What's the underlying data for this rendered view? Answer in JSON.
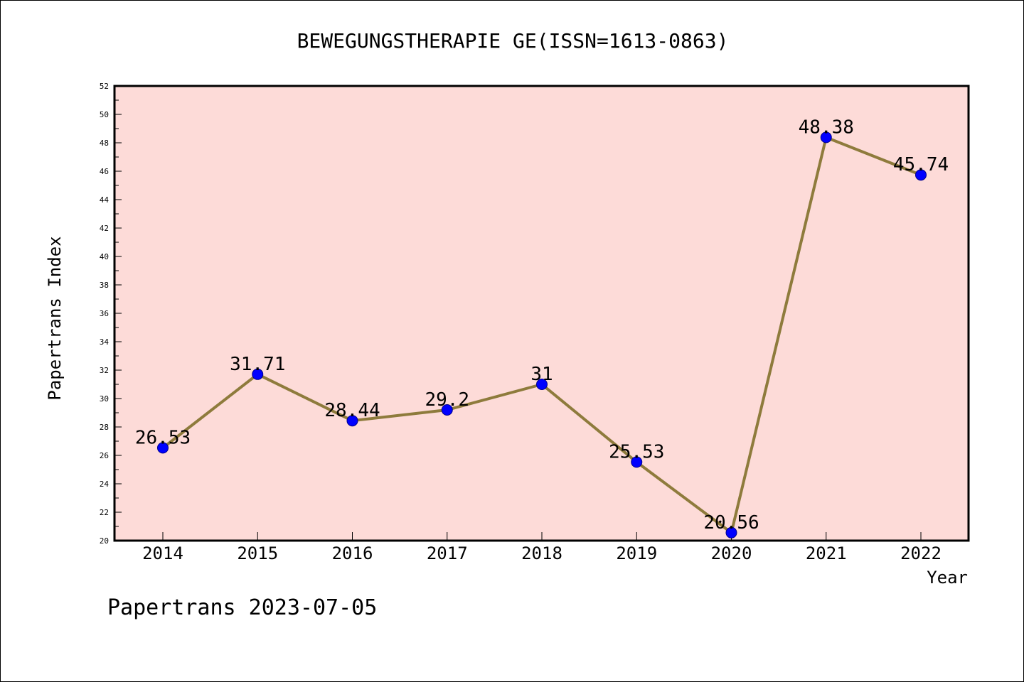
{
  "chart_data": {
    "type": "line",
    "title": "BEWEGUNGSTHERAPIE GE(ISSN=1613-0863)",
    "xlabel": "Year",
    "ylabel": "Papertrans Index",
    "footer": "Papertrans 2023-07-05",
    "categories": [
      "2014",
      "2015",
      "2016",
      "2017",
      "2018",
      "2019",
      "2020",
      "2021",
      "2022"
    ],
    "series": [
      {
        "values": [
          26.53,
          31.71,
          28.44,
          29.2,
          31,
          25.53,
          20.56,
          48.38,
          45.74
        ],
        "labels": [
          "26.53",
          "31.71",
          "28.44",
          "29.2",
          "31",
          "25.53",
          "20.56",
          "48.38",
          "45.74"
        ]
      }
    ],
    "ylim": [
      20,
      52
    ],
    "yticks": [
      "20",
      "22",
      "24",
      "26",
      "28",
      "30",
      "32",
      "34",
      "36",
      "38",
      "40",
      "42",
      "44",
      "46",
      "48",
      "50",
      "52"
    ],
    "grid": false,
    "legend": "none",
    "colors": {
      "plot_background": "#fddbd8",
      "line": "#8e7b3c",
      "marker": "#0000ff",
      "axis": "#000000"
    }
  }
}
